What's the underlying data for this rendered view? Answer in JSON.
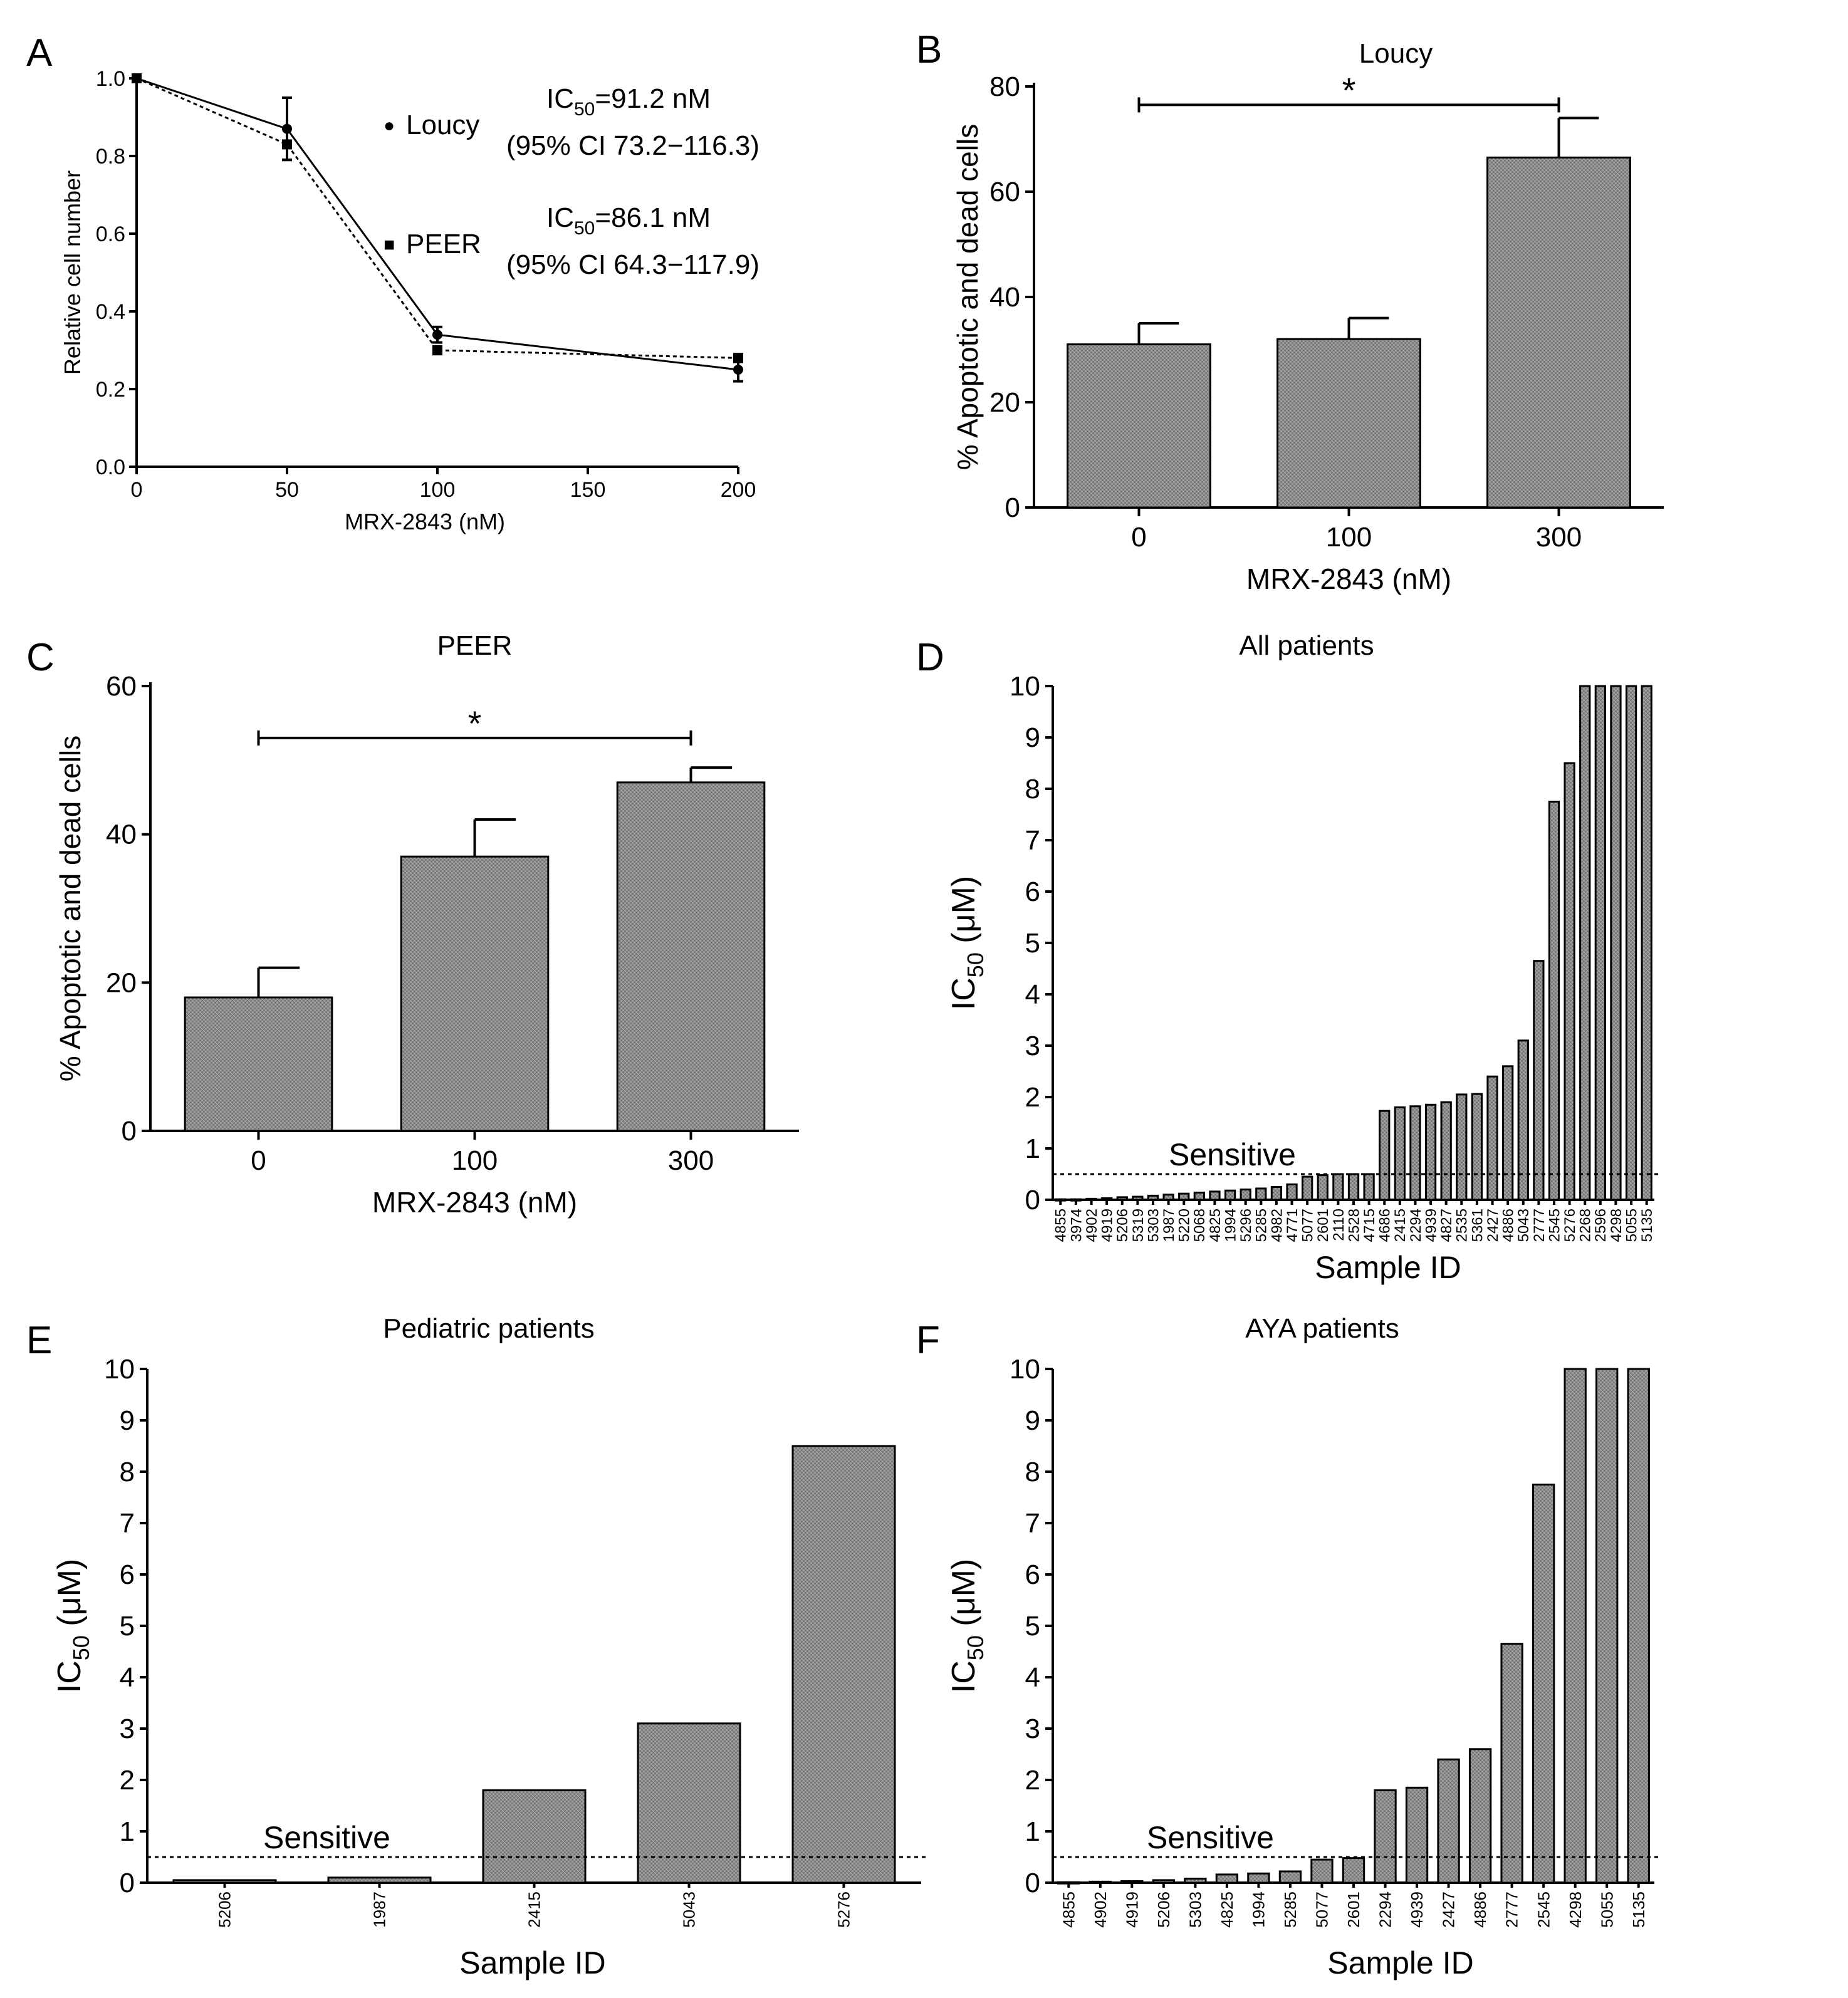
{
  "chart_data": [
    {
      "id": "A",
      "panel_letter": "A",
      "type": "line",
      "title": "",
      "xlabel": "MRX-2843 (nM)",
      "ylabel": "Relative cell number",
      "xlim": [
        0,
        200
      ],
      "ylim": [
        0.0,
        1.0
      ],
      "xticks": [
        "0",
        "50",
        "100",
        "150",
        "200"
      ],
      "yticks": [
        "0.0",
        "0.2",
        "0.4",
        "0.6",
        "0.8",
        "1.0"
      ],
      "x": [
        0,
        50,
        100,
        200
      ],
      "series": [
        {
          "name": "Loucy",
          "marker": "circle",
          "line": "solid",
          "values": [
            1.0,
            0.87,
            0.34,
            0.25
          ],
          "errors": [
            0.0,
            0.08,
            0.02,
            0.03
          ]
        },
        {
          "name": "PEER",
          "marker": "square",
          "line": "dotted",
          "values": [
            1.0,
            0.83,
            0.3,
            0.28
          ],
          "errors": [
            0.0,
            0.04,
            0.01,
            0.01
          ]
        }
      ],
      "legend_marks": [
        "●",
        "■"
      ],
      "annotations": [
        {
          "ic_prefix": "IC",
          "ic_sub": "50",
          "ic_value": "=91.2 nM",
          "ci": "(95% CI 73.2−116.3)"
        },
        {
          "ic_prefix": "IC",
          "ic_sub": "50",
          "ic_value": "=86.1 nM",
          "ci": "(95% CI 64.3−117.9)"
        }
      ]
    },
    {
      "id": "B",
      "panel_letter": "B",
      "type": "bar",
      "title": "Loucy",
      "xlabel": "MRX-2843 (nM)",
      "ylabel": "%  Apoptotic and dead cells",
      "categories": [
        "0",
        "100",
        "300"
      ],
      "values": [
        31,
        32,
        66.5
      ],
      "errors": [
        4,
        4,
        7.5
      ],
      "ylim": [
        0,
        80
      ],
      "yticks": [
        "0",
        "20",
        "40",
        "60",
        "80"
      ],
      "significance": {
        "from": "0",
        "to": "300",
        "y": 76.5,
        "label": "*"
      }
    },
    {
      "id": "C",
      "panel_letter": "C",
      "type": "bar",
      "title": "PEER",
      "xlabel": "MRX-2843 (nM)",
      "ylabel": "% Apoptotic and dead cells",
      "categories": [
        "0",
        "100",
        "300"
      ],
      "values": [
        18,
        37,
        47
      ],
      "errors": [
        4,
        5,
        2
      ],
      "ylim": [
        0,
        60
      ],
      "yticks": [
        "0",
        "20",
        "40",
        "60"
      ],
      "significance": {
        "from": "0",
        "to": "300",
        "y": 53,
        "label": "*"
      }
    },
    {
      "id": "D",
      "panel_letter": "D",
      "type": "bar",
      "title": "All patients",
      "xlabel": "Sample ID",
      "ylabel_prefix": "IC",
      "ylabel_sub": "50",
      "ylabel_suffix": "  (μM)",
      "categories": [
        "4855",
        "3974",
        "4902",
        "4919",
        "5206",
        "5319",
        "5303",
        "1987",
        "5220",
        "5068",
        "4825",
        "1994",
        "5296",
        "5285",
        "4982",
        "4771",
        "5077",
        "2601",
        "2110",
        "2528",
        "4715",
        "4686",
        "2415",
        "2294",
        "4939",
        "4827",
        "2535",
        "5361",
        "2427",
        "4886",
        "5043",
        "2777",
        "2545",
        "5276",
        "2268",
        "2596",
        "4298",
        "5055",
        "5135"
      ],
      "values": [
        0.01,
        0.01,
        0.02,
        0.03,
        0.05,
        0.06,
        0.08,
        0.1,
        0.12,
        0.14,
        0.16,
        0.18,
        0.2,
        0.22,
        0.25,
        0.3,
        0.45,
        0.48,
        0.5,
        0.5,
        0.5,
        1.73,
        1.8,
        1.82,
        1.85,
        1.9,
        2.05,
        2.06,
        2.4,
        2.6,
        3.1,
        4.65,
        7.75,
        8.5,
        10,
        10,
        10,
        10,
        10
      ],
      "ylim": [
        0,
        10
      ],
      "yticks": [
        "0",
        "1",
        "2",
        "3",
        "4",
        "5",
        "6",
        "7",
        "8",
        "9",
        "10"
      ],
      "threshold": {
        "value": 0.5,
        "label": "Sensitive"
      }
    },
    {
      "id": "E",
      "panel_letter": "E",
      "type": "bar",
      "title": "Pediatric patients",
      "xlabel": "Sample  ID",
      "ylabel_prefix": "IC",
      "ylabel_sub": "50",
      "ylabel_suffix": "  (μM)",
      "categories": [
        "5206",
        "1987",
        "2415",
        "5043",
        "5276"
      ],
      "values": [
        0.05,
        0.1,
        1.8,
        3.1,
        8.5
      ],
      "ylim": [
        0,
        10
      ],
      "yticks": [
        "0",
        "1",
        "2",
        "3",
        "4",
        "5",
        "6",
        "7",
        "8",
        "9",
        "10"
      ],
      "threshold": {
        "value": 0.5,
        "label": "Sensitive"
      }
    },
    {
      "id": "F",
      "panel_letter": "F",
      "type": "bar",
      "title": "AYA patients",
      "xlabel": "Sample  ID",
      "ylabel_prefix": "IC",
      "ylabel_sub": "50",
      "ylabel_suffix": "  (μM)",
      "categories": [
        "4855",
        "4902",
        "4919",
        "5206",
        "5303",
        "4825",
        "1994",
        "5285",
        "5077",
        "2601",
        "2294",
        "4939",
        "2427",
        "4886",
        "2777",
        "2545",
        "4298",
        "5055",
        "5135"
      ],
      "values": [
        0.01,
        0.02,
        0.03,
        0.05,
        0.08,
        0.16,
        0.18,
        0.22,
        0.45,
        0.48,
        1.8,
        1.85,
        2.4,
        2.6,
        4.65,
        7.75,
        10,
        10,
        10
      ],
      "ylim": [
        0,
        10
      ],
      "yticks": [
        "0",
        "1",
        "2",
        "3",
        "4",
        "5",
        "6",
        "7",
        "8",
        "9",
        "10"
      ],
      "threshold": {
        "value": 0.5,
        "label": "Sensitive"
      }
    }
  ]
}
